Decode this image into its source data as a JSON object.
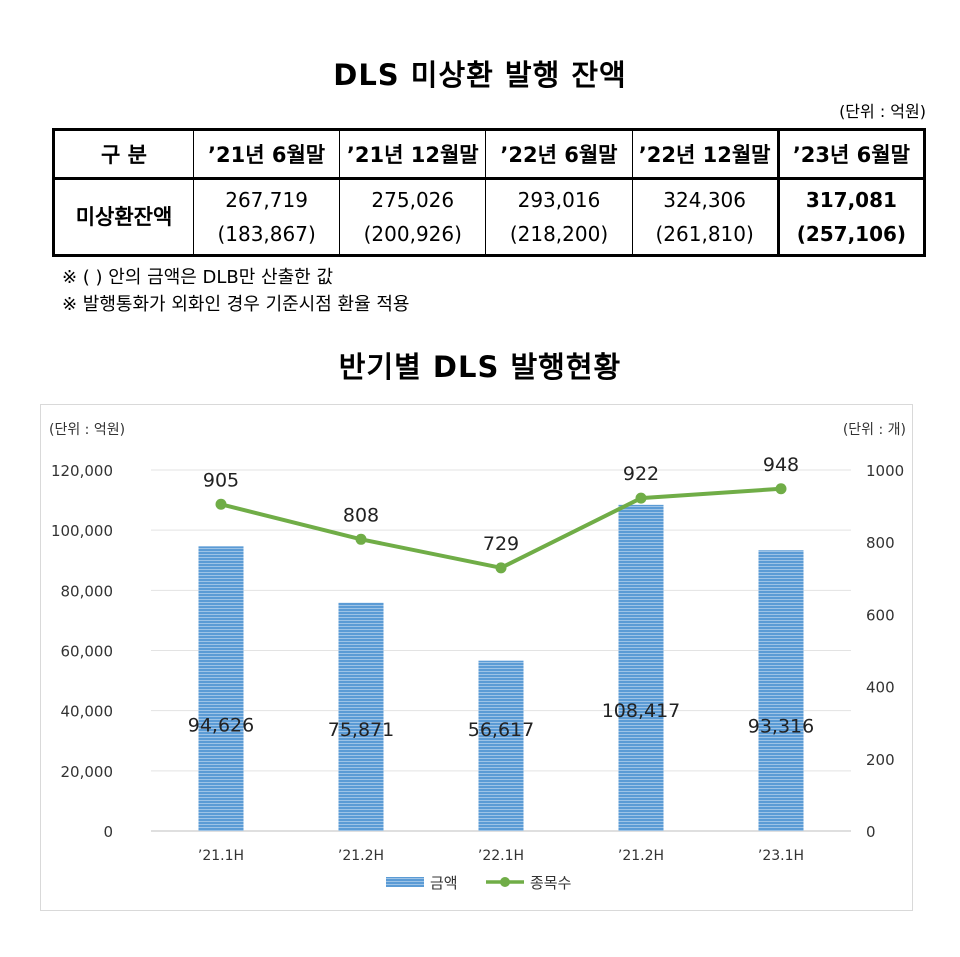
{
  "table_section": {
    "title": "DLS 미상환 발행 잔액",
    "unit": "(단위 : 억원)",
    "header": [
      "구 분",
      "’21년 6월말",
      "’21년 12월말",
      "’22년 6월말",
      "’22년 12월말",
      "’23년 6월말"
    ],
    "row_label": "미상환잔액",
    "values": [
      "267,719",
      "275,026",
      "293,016",
      "324,306",
      "317,081"
    ],
    "sub_values": [
      "(183,867)",
      "(200,926)",
      "(218,200)",
      "(261,810)",
      "(257,106)"
    ],
    "notes": [
      "※ (  ) 안의 금액은 DLB만 산출한 값",
      "※ 발행통화가 외화인 경우 기준시점 환율 적용"
    ]
  },
  "chart_section": {
    "title": "반기별 DLS 발행현황"
  },
  "chart_data": {
    "type": "bar",
    "categories": [
      "’21.1H",
      "’21.2H",
      "’22.1H",
      "’21.2H",
      "’23.1H"
    ],
    "series": [
      {
        "name": "금액",
        "type": "bar",
        "axis": "left",
        "color": "#5b9bd5",
        "values": [
          94626,
          75871,
          56617,
          108417,
          93316
        ],
        "labels": [
          "94,626",
          "75,871",
          "56,617",
          "108,417",
          "93,316"
        ]
      },
      {
        "name": "종목수",
        "type": "line",
        "axis": "right",
        "color": "#70ad47",
        "values": [
          905,
          808,
          729,
          922,
          948
        ],
        "labels": [
          "905",
          "808",
          "729",
          "922",
          "948"
        ]
      }
    ],
    "left_axis": {
      "unit_label": "(단위 : 억원)",
      "ylim": [
        0,
        120000
      ],
      "ticks": [
        0,
        20000,
        40000,
        60000,
        80000,
        100000,
        120000
      ],
      "tick_labels": [
        "0",
        "20,000",
        "40,000",
        "60,000",
        "80,000",
        "100,000",
        "120,000"
      ]
    },
    "right_axis": {
      "unit_label": "(단위 : 개)",
      "ylim": [
        0,
        1000
      ],
      "ticks": [
        0,
        200,
        400,
        600,
        800,
        1000
      ],
      "tick_labels": [
        "0",
        "200",
        "400",
        "600",
        "800",
        "1000"
      ]
    },
    "grid": true,
    "legend": "bottom"
  }
}
